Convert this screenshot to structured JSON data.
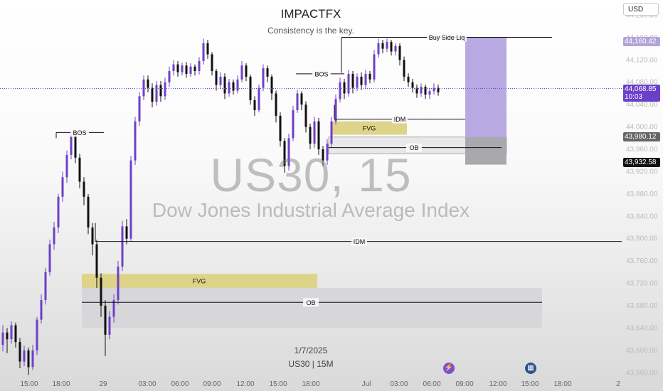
{
  "header": {
    "title": "IMPACTFX",
    "subtitle": "Consistency is the key."
  },
  "watermark": {
    "symbol": "US30, 15",
    "name": "Dow Jones Industrial Average Index"
  },
  "footer": {
    "date": "1/7/2025",
    "symbol_interval": "US30 | 15M"
  },
  "toolbar": {
    "currency": "USD"
  },
  "price_tags": {
    "buyside": "44,160.42",
    "current_price": "44,068.85",
    "countdown": "10:03",
    "ob_level": "43,980.12",
    "last_level": "43,932.58"
  },
  "icons": {
    "lightning": "lightning-icon",
    "calendar": "calendar-icon"
  },
  "colors": {
    "bull": "#6f3fc8",
    "bear": "#111111",
    "fvg": "#ddd48a",
    "ob": "#d7d7da",
    "target": "#b9a9e3"
  },
  "chart_data": {
    "type": "candlestick",
    "ylim": [
      43540,
      44240
    ],
    "y_ticks": [
      "44,200.00",
      "44,160.00",
      "44,120.00",
      "44,080.00",
      "44,040.00",
      "44,000.00",
      "43,960.00",
      "43,920.00",
      "43,880.00",
      "43,840.00",
      "43,800.00",
      "43,760.00",
      "43,720.00",
      "43,680.00",
      "43,640.00",
      "43,600.00",
      "43,560.00"
    ],
    "y_tick_values": [
      44200,
      44160,
      44120,
      44080,
      44040,
      44000,
      43960,
      43920,
      43880,
      43840,
      43800,
      43760,
      43720,
      43680,
      43640,
      43600,
      43560
    ],
    "x_ticks": [
      "15:00",
      "18:00",
      "29",
      "03:00",
      "06:00",
      "09:00",
      "12:00",
      "15:00",
      "18:00",
      "Jul",
      "03:00",
      "06:00",
      "09:00",
      "12:00",
      "15:00",
      "18:00",
      "2"
    ],
    "annotations": {
      "bos_left": "BOS",
      "bos_right": "BOS",
      "buy_side": "Buy Side Liq",
      "idm_top": "IDM",
      "idm_bottom": "IDM",
      "fvg_top": "FVG",
      "fvg_bottom": "FVG",
      "ob_top": "OB",
      "ob_bottom": "OB"
    },
    "current_price": 44068.85,
    "levels": {
      "buy_side": 44160.42,
      "bos_left": 43990,
      "bos_right": 44095,
      "idm_top": 44014,
      "idm_bottom": 43795,
      "fvg_top": [
        43986,
        44010
      ],
      "ob_top": [
        43952,
        43982
      ],
      "fvg_bottom": [
        43712,
        43737
      ],
      "ob_bottom": [
        43640,
        43712
      ],
      "target": [
        43932.58,
        44160.42
      ]
    },
    "candles": [
      [
        43610,
        43632,
        43598,
        43645
      ],
      [
        43632,
        43620,
        43595,
        43640
      ],
      [
        43620,
        43645,
        43612,
        43652
      ],
      [
        43645,
        43615,
        43605,
        43650
      ],
      [
        43615,
        43580,
        43568,
        43622
      ],
      [
        43580,
        43600,
        43572,
        43608
      ],
      [
        43600,
        43570,
        43556,
        43605
      ],
      [
        43570,
        43600,
        43565,
        43610
      ],
      [
        43600,
        43655,
        43592,
        43660
      ],
      [
        43655,
        43690,
        43648,
        43700
      ],
      [
        43690,
        43740,
        43682,
        43748
      ],
      [
        43740,
        43790,
        43734,
        43798
      ],
      [
        43790,
        43820,
        43780,
        43830
      ],
      [
        43820,
        43875,
        43810,
        43880
      ],
      [
        43875,
        43910,
        43866,
        43920
      ],
      [
        43910,
        43950,
        43900,
        43958
      ],
      [
        43950,
        43985,
        43942,
        43990
      ],
      [
        43985,
        43945,
        43935,
        43992
      ],
      [
        43945,
        43902,
        43890,
        43952
      ],
      [
        43902,
        43875,
        43860,
        43910
      ],
      [
        43875,
        43820,
        43808,
        43880
      ],
      [
        43820,
        43790,
        43770,
        43828
      ],
      [
        43790,
        43730,
        43712,
        43798
      ],
      [
        43730,
        43680,
        43660,
        43738
      ],
      [
        43680,
        43628,
        43590,
        43690
      ],
      [
        43628,
        43660,
        43620,
        43670
      ],
      [
        43660,
        43690,
        43650,
        43700
      ],
      [
        43690,
        43750,
        43682,
        43760
      ],
      [
        43750,
        43822,
        43742,
        43832
      ],
      [
        43822,
        43800,
        43790,
        43835
      ],
      [
        43800,
        43940,
        43796,
        43948
      ],
      [
        43940,
        44010,
        43932,
        44018
      ],
      [
        44010,
        44055,
        44002,
        44062
      ],
      [
        44055,
        44085,
        44048,
        44092
      ],
      [
        44085,
        44070,
        44062,
        44092
      ],
      [
        44070,
        44045,
        44035,
        44078
      ],
      [
        44045,
        44075,
        44038,
        44082
      ],
      [
        44075,
        44055,
        44045,
        44082
      ],
      [
        44055,
        44080,
        44048,
        44088
      ],
      [
        44080,
        44100,
        44072,
        44108
      ],
      [
        44100,
        44112,
        44092,
        44120
      ],
      [
        44112,
        44098,
        44090,
        44118
      ],
      [
        44098,
        44110,
        44092,
        44115
      ],
      [
        44110,
        44095,
        44088,
        44116
      ],
      [
        44095,
        44108,
        44090,
        44114
      ],
      [
        44108,
        44100,
        44092,
        44112
      ],
      [
        44100,
        44118,
        44094,
        44125
      ],
      [
        44118,
        44150,
        44112,
        44158
      ],
      [
        44150,
        44130,
        44122,
        44156
      ],
      [
        44130,
        44100,
        44092,
        44134
      ],
      [
        44100,
        44075,
        44065,
        44104
      ],
      [
        44075,
        44090,
        44068,
        44098
      ],
      [
        44090,
        44060,
        44050,
        44096
      ],
      [
        44060,
        44080,
        44054,
        44086
      ],
      [
        44080,
        44065,
        44058,
        44085
      ],
      [
        44065,
        44085,
        44060,
        44092
      ],
      [
        44085,
        44110,
        44080,
        44118
      ],
      [
        44110,
        44090,
        44082,
        44114
      ],
      [
        44090,
        44048,
        44040,
        44094
      ],
      [
        44048,
        44030,
        44020,
        44055
      ],
      [
        44030,
        44070,
        44026,
        44076
      ],
      [
        44070,
        44105,
        44064,
        44112
      ],
      [
        44105,
        44090,
        44080,
        44110
      ],
      [
        44090,
        44060,
        44048,
        44094
      ],
      [
        44060,
        44020,
        44008,
        44065
      ],
      [
        44020,
        43975,
        43965,
        44026
      ],
      [
        43975,
        43930,
        43918,
        43980
      ],
      [
        43930,
        43980,
        43922,
        43988
      ],
      [
        43980,
        44030,
        43975,
        44038
      ],
      [
        44030,
        44060,
        44025,
        44066
      ],
      [
        44060,
        44040,
        44030,
        44064
      ],
      [
        44040,
        44000,
        43990,
        44046
      ],
      [
        44000,
        43970,
        43960,
        44006
      ],
      [
        43970,
        44010,
        43962,
        44018
      ],
      [
        44010,
        43960,
        43950,
        44016
      ],
      [
        43960,
        43940,
        43930,
        43966
      ],
      [
        43940,
        43970,
        43932,
        43978
      ],
      [
        43970,
        44010,
        43964,
        44018
      ],
      [
        44010,
        44050,
        44004,
        44058
      ],
      [
        44050,
        44080,
        44044,
        44088
      ],
      [
        44080,
        44060,
        44050,
        44086
      ],
      [
        44060,
        44095,
        44054,
        44102
      ],
      [
        44095,
        44070,
        44060,
        44100
      ],
      [
        44070,
        44090,
        44064,
        44096
      ],
      [
        44090,
        44075,
        44066,
        44098
      ],
      [
        44075,
        44095,
        44068,
        44102
      ],
      [
        44095,
        44085,
        44078,
        44100
      ],
      [
        44085,
        44130,
        44080,
        44138
      ],
      [
        44130,
        44150,
        44124,
        44158
      ],
      [
        44150,
        44140,
        44132,
        44156
      ],
      [
        44140,
        44152,
        44134,
        44158
      ],
      [
        44152,
        44135,
        44128,
        44156
      ],
      [
        44135,
        44145,
        44128,
        44150
      ],
      [
        44145,
        44120,
        44110,
        44150
      ],
      [
        44120,
        44090,
        44082,
        44126
      ],
      [
        44090,
        44080,
        44072,
        44096
      ],
      [
        44080,
        44070,
        44062,
        44086
      ],
      [
        44070,
        44060,
        44052,
        44076
      ],
      [
        44060,
        44072,
        44054,
        44078
      ],
      [
        44072,
        44058,
        44050,
        44076
      ],
      [
        44058,
        44064,
        44050,
        44070
      ],
      [
        44064,
        44070,
        44058,
        44078
      ],
      [
        44070,
        44062,
        44056,
        44076
      ]
    ]
  }
}
